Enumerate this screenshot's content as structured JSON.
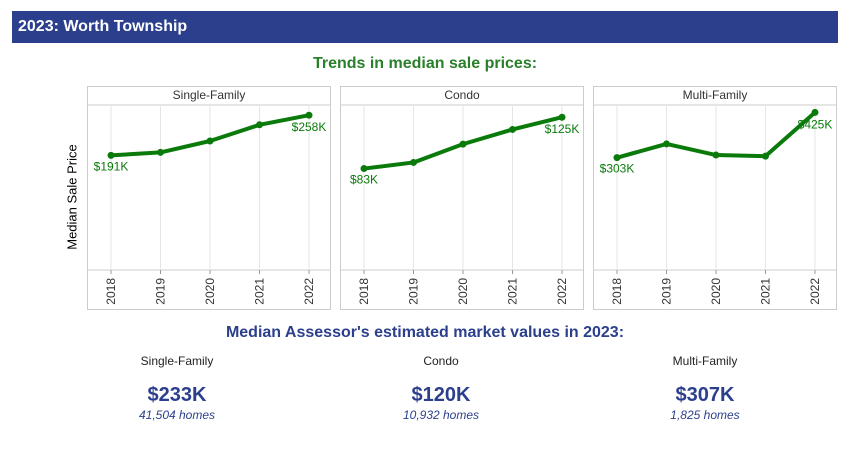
{
  "header": {
    "title": "2023:  Worth Township"
  },
  "trends": {
    "heading": "Trends in median sale prices:"
  },
  "colors": {
    "header_bg": "#2b3f8d",
    "line": "#0a7a0a",
    "heading_green": "#2a7f2a",
    "value_blue": "#2b3f8d"
  },
  "chart_data": [
    {
      "type": "line",
      "title": "Single-Family",
      "ylabel": "Median Sale Price",
      "x": [
        "2018",
        "2019",
        "2020",
        "2021",
        "2022"
      ],
      "values": [
        191,
        196,
        215,
        242,
        258
      ],
      "start_label": "$191K",
      "end_label": "$258K",
      "ylim": [
        0,
        275
      ]
    },
    {
      "type": "line",
      "title": "Condo",
      "ylabel": "Median Sale Price",
      "x": [
        "2018",
        "2019",
        "2020",
        "2021",
        "2022"
      ],
      "values": [
        83,
        88,
        103,
        115,
        125
      ],
      "start_label": "$83K",
      "end_label": "$125K",
      "ylim": [
        0,
        135
      ]
    },
    {
      "type": "line",
      "title": "Multi-Family",
      "ylabel": "Median Sale Price",
      "x": [
        "2018",
        "2019",
        "2020",
        "2021",
        "2022"
      ],
      "values": [
        303,
        340,
        310,
        307,
        425
      ],
      "start_label": "$303K",
      "end_label": "$425K",
      "ylim": [
        0,
        445
      ]
    }
  ],
  "market": {
    "heading": "Median Assessor's estimated market values in 2023:",
    "items": [
      {
        "type": "Single-Family",
        "value": "$233K",
        "homes": "41,504 homes"
      },
      {
        "type": "Condo",
        "value": "$120K",
        "homes": "10,932 homes"
      },
      {
        "type": "Multi-Family",
        "value": "$307K",
        "homes": "1,825 homes"
      }
    ]
  }
}
